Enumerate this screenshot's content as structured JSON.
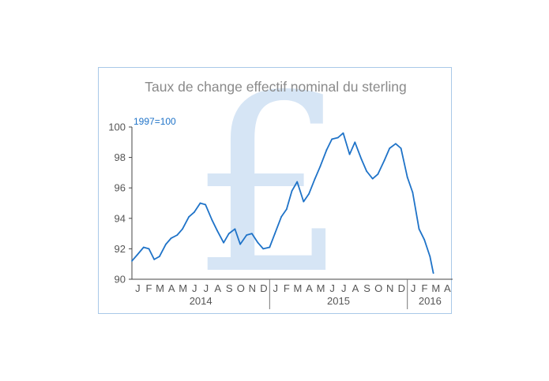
{
  "chart_data": {
    "type": "line",
    "title": "Taux de change effectif nominal du sterling",
    "unit_label": "1997=100",
    "watermark_symbol": "£",
    "ylim": [
      90,
      100
    ],
    "yticks": [
      "90",
      "92",
      "94",
      "96",
      "98",
      "100"
    ],
    "ytick_values": [
      90,
      92,
      94,
      96,
      98,
      100
    ],
    "xlim": [
      "2014-01-01",
      "2016-04-30"
    ],
    "month_labels": [
      "J",
      "F",
      "M",
      "A",
      "M",
      "J",
      "J",
      "A",
      "S",
      "O",
      "N",
      "D",
      "J",
      "F",
      "M",
      "A",
      "M",
      "J",
      "J",
      "A",
      "S",
      "O",
      "N",
      "D",
      "J",
      "F",
      "M",
      "A"
    ],
    "year_labels": [
      "2014",
      "2015",
      "2016"
    ],
    "grid": false,
    "line_color": "#1f73c8",
    "series": [
      {
        "x": [
          "2014-01-01",
          "2014-01-15",
          "2014-02-01",
          "2014-02-15",
          "2014-03-01",
          "2014-03-15",
          "2014-04-01",
          "2014-04-15",
          "2014-05-01",
          "2014-05-15",
          "2014-06-01",
          "2014-06-15",
          "2014-07-01",
          "2014-07-15",
          "2014-08-01",
          "2014-08-15",
          "2014-09-01",
          "2014-09-15",
          "2014-10-01",
          "2014-10-15",
          "2014-11-01",
          "2014-11-15",
          "2014-12-01",
          "2014-12-15",
          "2015-01-01",
          "2015-01-15",
          "2015-02-01",
          "2015-02-15",
          "2015-03-01",
          "2015-03-15",
          "2015-04-01",
          "2015-04-15",
          "2015-05-01",
          "2015-05-15",
          "2015-06-01",
          "2015-06-15",
          "2015-07-01",
          "2015-07-15",
          "2015-08-01",
          "2015-08-15",
          "2015-09-01",
          "2015-09-15",
          "2015-10-01",
          "2015-10-15",
          "2015-11-01",
          "2015-11-15",
          "2015-12-01",
          "2015-12-15",
          "2016-01-01",
          "2016-01-15",
          "2016-02-01",
          "2016-02-15",
          "2016-03-01",
          "2016-03-10"
        ],
        "values": [
          91.2,
          91.6,
          92.1,
          92.0,
          91.3,
          91.5,
          92.3,
          92.7,
          92.9,
          93.3,
          94.1,
          94.4,
          95.0,
          94.9,
          93.9,
          93.2,
          92.4,
          93.0,
          93.3,
          92.3,
          92.9,
          93.0,
          92.4,
          92.0,
          92.1,
          93.0,
          94.1,
          94.6,
          95.8,
          96.4,
          95.1,
          95.6,
          96.6,
          97.4,
          98.5,
          99.2,
          99.3,
          99.6,
          98.2,
          99.0,
          97.9,
          97.1,
          96.6,
          96.9,
          97.8,
          98.6,
          98.9,
          98.6,
          96.7,
          95.7,
          93.3,
          92.6,
          91.5,
          90.4
        ]
      }
    ]
  }
}
